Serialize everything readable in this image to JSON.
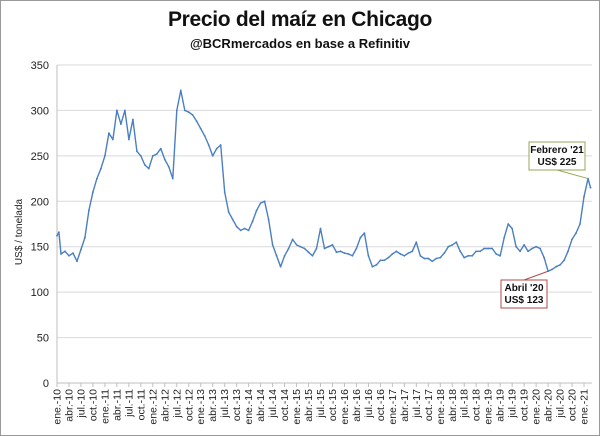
{
  "chart_data": {
    "type": "line",
    "title": "Precio del maíz en Chicago",
    "subtitle": "@BCRmercados en base a Refinitiv",
    "ylabel": "US$ / tonelada",
    "xlabel": "",
    "ylim": [
      0,
      350
    ],
    "yticks": [
      0,
      50,
      100,
      150,
      200,
      250,
      300,
      350
    ],
    "grid": "horizontal",
    "series": [
      {
        "color": "#4a7fc1",
        "points": [
          [
            "2010-01",
            162
          ],
          [
            "2010-01-15",
            166
          ],
          [
            "2010-02",
            142
          ],
          [
            "2010-03",
            145
          ],
          [
            "2010-04",
            140
          ],
          [
            "2010-05",
            143
          ],
          [
            "2010-06",
            134
          ],
          [
            "2010-07",
            147
          ],
          [
            "2010-08",
            160
          ],
          [
            "2010-09",
            190
          ],
          [
            "2010-10",
            210
          ],
          [
            "2010-11",
            225
          ],
          [
            "2010-12",
            236
          ],
          [
            "2011-01",
            250
          ],
          [
            "2011-02",
            275
          ],
          [
            "2011-03",
            268
          ],
          [
            "2011-04",
            300
          ],
          [
            "2011-05",
            285
          ],
          [
            "2011-06",
            300
          ],
          [
            "2011-07",
            268
          ],
          [
            "2011-08",
            290
          ],
          [
            "2011-09",
            255
          ],
          [
            "2011-10",
            250
          ],
          [
            "2011-11",
            240
          ],
          [
            "2011-12",
            236
          ],
          [
            "2012-01",
            250
          ],
          [
            "2012-02",
            252
          ],
          [
            "2012-03",
            258
          ],
          [
            "2012-04",
            246
          ],
          [
            "2012-05",
            238
          ],
          [
            "2012-06",
            225
          ],
          [
            "2012-07",
            300
          ],
          [
            "2012-08",
            322
          ],
          [
            "2012-09",
            300
          ],
          [
            "2012-10",
            298
          ],
          [
            "2012-11",
            295
          ],
          [
            "2012-12",
            288
          ],
          [
            "2013-01",
            280
          ],
          [
            "2013-02",
            272
          ],
          [
            "2013-03",
            262
          ],
          [
            "2013-04",
            250
          ],
          [
            "2013-05",
            258
          ],
          [
            "2013-06",
            262
          ],
          [
            "2013-07",
            210
          ],
          [
            "2013-08",
            188
          ],
          [
            "2013-09",
            180
          ],
          [
            "2013-10",
            172
          ],
          [
            "2013-11",
            168
          ],
          [
            "2013-12",
            170
          ],
          [
            "2014-01",
            168
          ],
          [
            "2014-02",
            178
          ],
          [
            "2014-03",
            190
          ],
          [
            "2014-04",
            198
          ],
          [
            "2014-05",
            200
          ],
          [
            "2014-06",
            180
          ],
          [
            "2014-07",
            152
          ],
          [
            "2014-08",
            140
          ],
          [
            "2014-09",
            128
          ],
          [
            "2014-10",
            140
          ],
          [
            "2014-11",
            148
          ],
          [
            "2014-12",
            158
          ],
          [
            "2015-01",
            152
          ],
          [
            "2015-02",
            150
          ],
          [
            "2015-03",
            148
          ],
          [
            "2015-04",
            144
          ],
          [
            "2015-05",
            140
          ],
          [
            "2015-06",
            148
          ],
          [
            "2015-07",
            170
          ],
          [
            "2015-08",
            148
          ],
          [
            "2015-09",
            150
          ],
          [
            "2015-10",
            152
          ],
          [
            "2015-11",
            144
          ],
          [
            "2015-12",
            145
          ],
          [
            "2016-01",
            143
          ],
          [
            "2016-02",
            142
          ],
          [
            "2016-03",
            140
          ],
          [
            "2016-04",
            148
          ],
          [
            "2016-05",
            160
          ],
          [
            "2016-06",
            165
          ],
          [
            "2016-07",
            140
          ],
          [
            "2016-08",
            128
          ],
          [
            "2016-09",
            130
          ],
          [
            "2016-10",
            135
          ],
          [
            "2016-11",
            135
          ],
          [
            "2016-12",
            138
          ],
          [
            "2017-01",
            142
          ],
          [
            "2017-02",
            145
          ],
          [
            "2017-03",
            142
          ],
          [
            "2017-04",
            140
          ],
          [
            "2017-05",
            143
          ],
          [
            "2017-06",
            145
          ],
          [
            "2017-07",
            155
          ],
          [
            "2017-08",
            140
          ],
          [
            "2017-09",
            137
          ],
          [
            "2017-10",
            137
          ],
          [
            "2017-11",
            134
          ],
          [
            "2017-12",
            137
          ],
          [
            "2018-01",
            138
          ],
          [
            "2018-02",
            143
          ],
          [
            "2018-03",
            150
          ],
          [
            "2018-04",
            152
          ],
          [
            "2018-05",
            155
          ],
          [
            "2018-06",
            145
          ],
          [
            "2018-07",
            138
          ],
          [
            "2018-08",
            140
          ],
          [
            "2018-09",
            140
          ],
          [
            "2018-10",
            145
          ],
          [
            "2018-11",
            145
          ],
          [
            "2018-12",
            148
          ],
          [
            "2019-01",
            148
          ],
          [
            "2019-02",
            148
          ],
          [
            "2019-03",
            142
          ],
          [
            "2019-04",
            140
          ],
          [
            "2019-05",
            160
          ],
          [
            "2019-06",
            175
          ],
          [
            "2019-07",
            170
          ],
          [
            "2019-08",
            150
          ],
          [
            "2019-09",
            145
          ],
          [
            "2019-10",
            152
          ],
          [
            "2019-11",
            145
          ],
          [
            "2019-12",
            148
          ],
          [
            "2020-01",
            150
          ],
          [
            "2020-02",
            148
          ],
          [
            "2020-03",
            138
          ],
          [
            "2020-04",
            123
          ],
          [
            "2020-05",
            125
          ],
          [
            "2020-06",
            128
          ],
          [
            "2020-07",
            130
          ],
          [
            "2020-08",
            135
          ],
          [
            "2020-09",
            145
          ],
          [
            "2020-10",
            158
          ],
          [
            "2020-11",
            165
          ],
          [
            "2020-12",
            175
          ],
          [
            "2021-01",
            205
          ],
          [
            "2021-02",
            225
          ],
          [
            "2021-02-20",
            215
          ]
        ]
      }
    ],
    "x_tick_labels": [
      "ene.-10",
      "abr.-10",
      "jul.-10",
      "oct.-10",
      "ene.-11",
      "abr.-11",
      "jul.-11",
      "oct.-11",
      "ene.-12",
      "abr.-12",
      "jul.-12",
      "oct.-12",
      "ene.-13",
      "abr.-13",
      "jul.-13",
      "oct.-13",
      "ene.-14",
      "abr.-14",
      "jul.-14",
      "oct.-14",
      "ene.-15",
      "abr.-15",
      "jul.-15",
      "oct.-15",
      "ene.-16",
      "abr.-16",
      "jul.-16",
      "oct.-16",
      "ene.-17",
      "abr.-17",
      "jul.-17",
      "oct.-17",
      "ene.-18",
      "abr.-18",
      "jul.-18",
      "oct.-18",
      "ene.-19",
      "abr.-19",
      "jul.-19",
      "oct.-19",
      "ene.-20",
      "abr.-20",
      "jul.-20",
      "oct.-20",
      "ene.-21"
    ],
    "x_range": [
      "2010-01",
      "2021-03"
    ],
    "annotations": [
      {
        "date": "2021-02",
        "value": 225,
        "lines": [
          "Febrero '21",
          "US$ 225"
        ],
        "border": "#9aa55a"
      },
      {
        "date": "2020-04",
        "value": 123,
        "lines": [
          "Abril '20",
          "US$ 123"
        ],
        "border": "#b24a4a"
      }
    ]
  }
}
